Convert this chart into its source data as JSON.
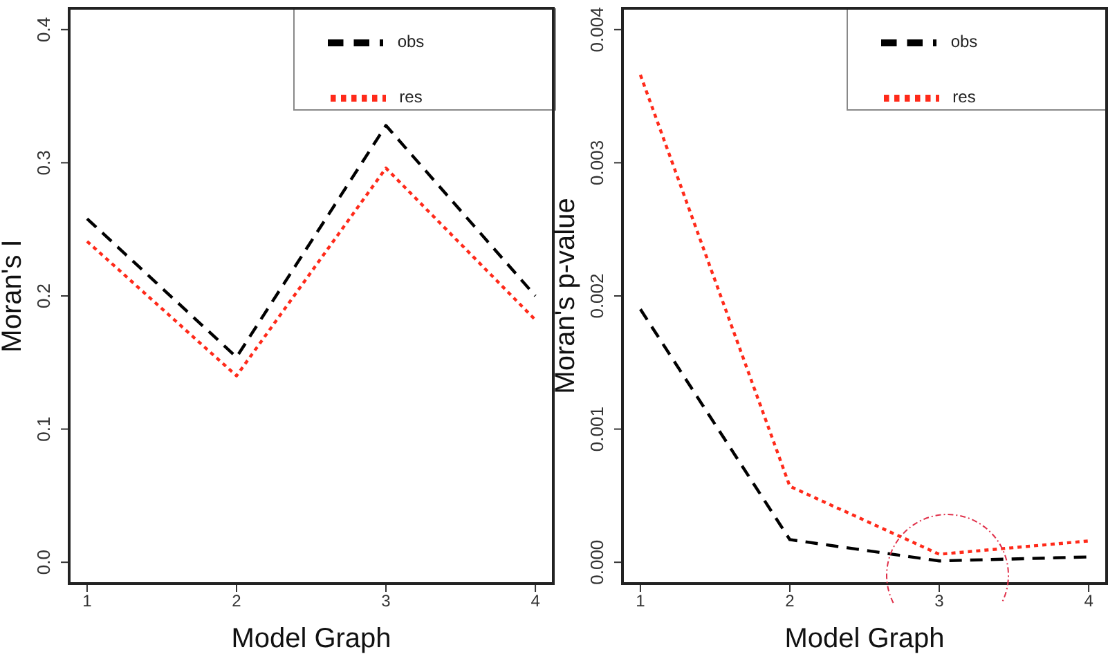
{
  "chart_data": [
    {
      "type": "line",
      "xlabel": "Model Graph",
      "ylabel": "Moran's I",
      "x": [
        1,
        2,
        3,
        4
      ],
      "xlim": [
        0.88,
        4.12
      ],
      "xticks": [
        1,
        2,
        3,
        4
      ],
      "ylim": [
        -0.016,
        0.416
      ],
      "yticks": [
        {
          "value": 0,
          "label": "0.0"
        },
        0.1,
        0.2,
        0.3,
        0.4
      ],
      "grid": false,
      "legend": "top right",
      "marker": "none",
      "series": [
        {
          "name": "obs",
          "color": "#000000",
          "line_style": "dashed",
          "values": [
            0.258,
            0.154,
            0.328,
            0.2
          ]
        },
        {
          "name": "res",
          "color": "#ff2a1a",
          "line_style": "dotted",
          "values": [
            0.241,
            0.14,
            0.296,
            0.182
          ]
        }
      ]
    },
    {
      "type": "line",
      "xlabel": "Model Graph",
      "ylabel": "Moran's p-value",
      "x": [
        1,
        2,
        3,
        4
      ],
      "xlim": [
        0.88,
        4.12
      ],
      "xticks": [
        1,
        2,
        3,
        4
      ],
      "ylim": [
        -0.00016,
        0.00416
      ],
      "yticks": [
        {
          "value": 0,
          "label": "0.000"
        },
        0.001,
        0.002,
        0.003,
        0.004
      ],
      "grid": false,
      "legend": "top right",
      "marker": "none",
      "series": [
        {
          "name": "obs",
          "color": "#000000",
          "line_style": "dashed",
          "values": [
            0.0019,
            0.00017,
            1e-05,
            4e-05
          ]
        },
        {
          "name": "res",
          "color": "#ff2a1a",
          "line_style": "dotted",
          "values": [
            0.00366,
            0.00057,
            6e-05,
            0.00016
          ]
        }
      ]
    }
  ]
}
